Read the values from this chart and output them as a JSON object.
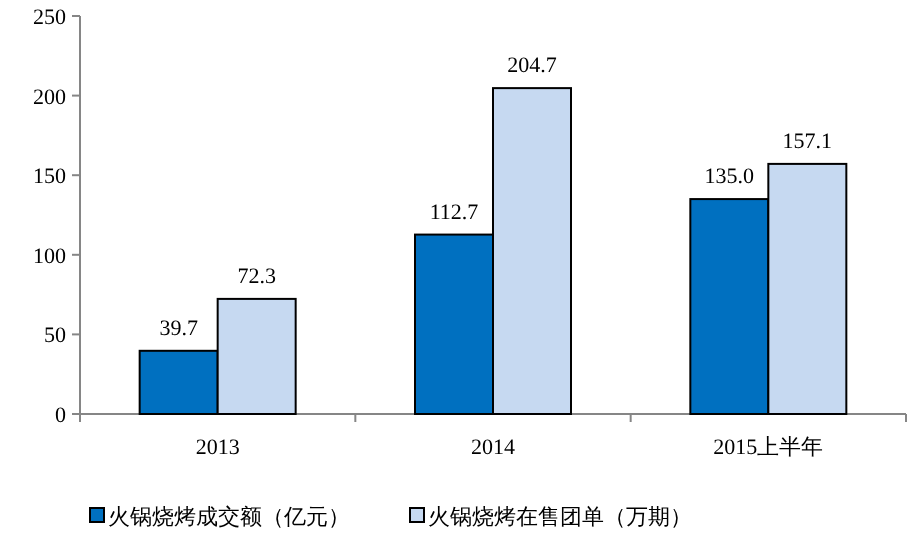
{
  "chart_data": {
    "type": "bar",
    "categories": [
      "2013",
      "2014",
      "2015上半年"
    ],
    "series": [
      {
        "name": "火锅烧烤成交额（亿元）",
        "color": "#0070c0",
        "values": [
          39.7,
          112.7,
          135.0
        ],
        "value_labels": [
          "39.7",
          "112.7",
          "135.0"
        ]
      },
      {
        "name": "火锅烧烤在售团单（万期）",
        "color": "#c6d9f1",
        "values": [
          72.3,
          204.7,
          157.1
        ],
        "value_labels": [
          "72.3",
          "204.7",
          "157.1"
        ]
      }
    ],
    "ylim": [
      0,
      250
    ],
    "yticks": [
      0,
      50,
      100,
      150,
      200,
      250
    ],
    "grid": false,
    "legend": "bottom"
  }
}
